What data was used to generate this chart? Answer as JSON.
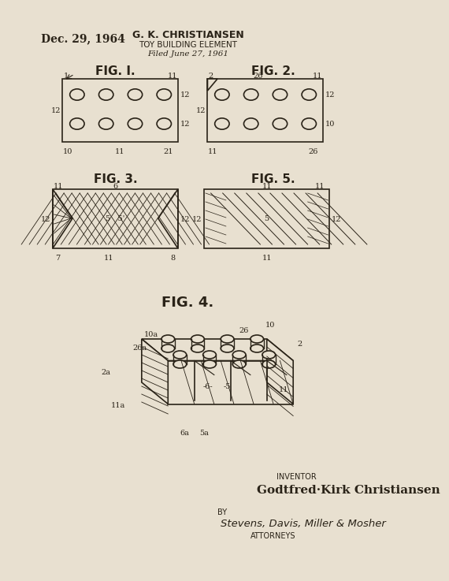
{
  "bg_color": "#e8e0d0",
  "ink_color": "#2a2318",
  "date_text": "Dec. 29, 1964",
  "inventor_name": "G. K. CHRISTIANSEN",
  "patent_title": "TOY BUILDING ELEMENT",
  "filed_text": "Filed June 27, 1961",
  "inventor_label": "INVENTOR",
  "inventor_full": "Godtfred·Kirk Christiansen",
  "by_text": "BY",
  "attorneys_sig": "Stevens, Davis, Miller & Mosher",
  "attorneys_label": "ATTORNEYS",
  "fig1_label": "FIG. I.",
  "fig2_label": "FIG. 2.",
  "fig3_label": "FIG. 3.",
  "fig4_label": "FIG. 4.",
  "fig5_label": "FIG. 5."
}
